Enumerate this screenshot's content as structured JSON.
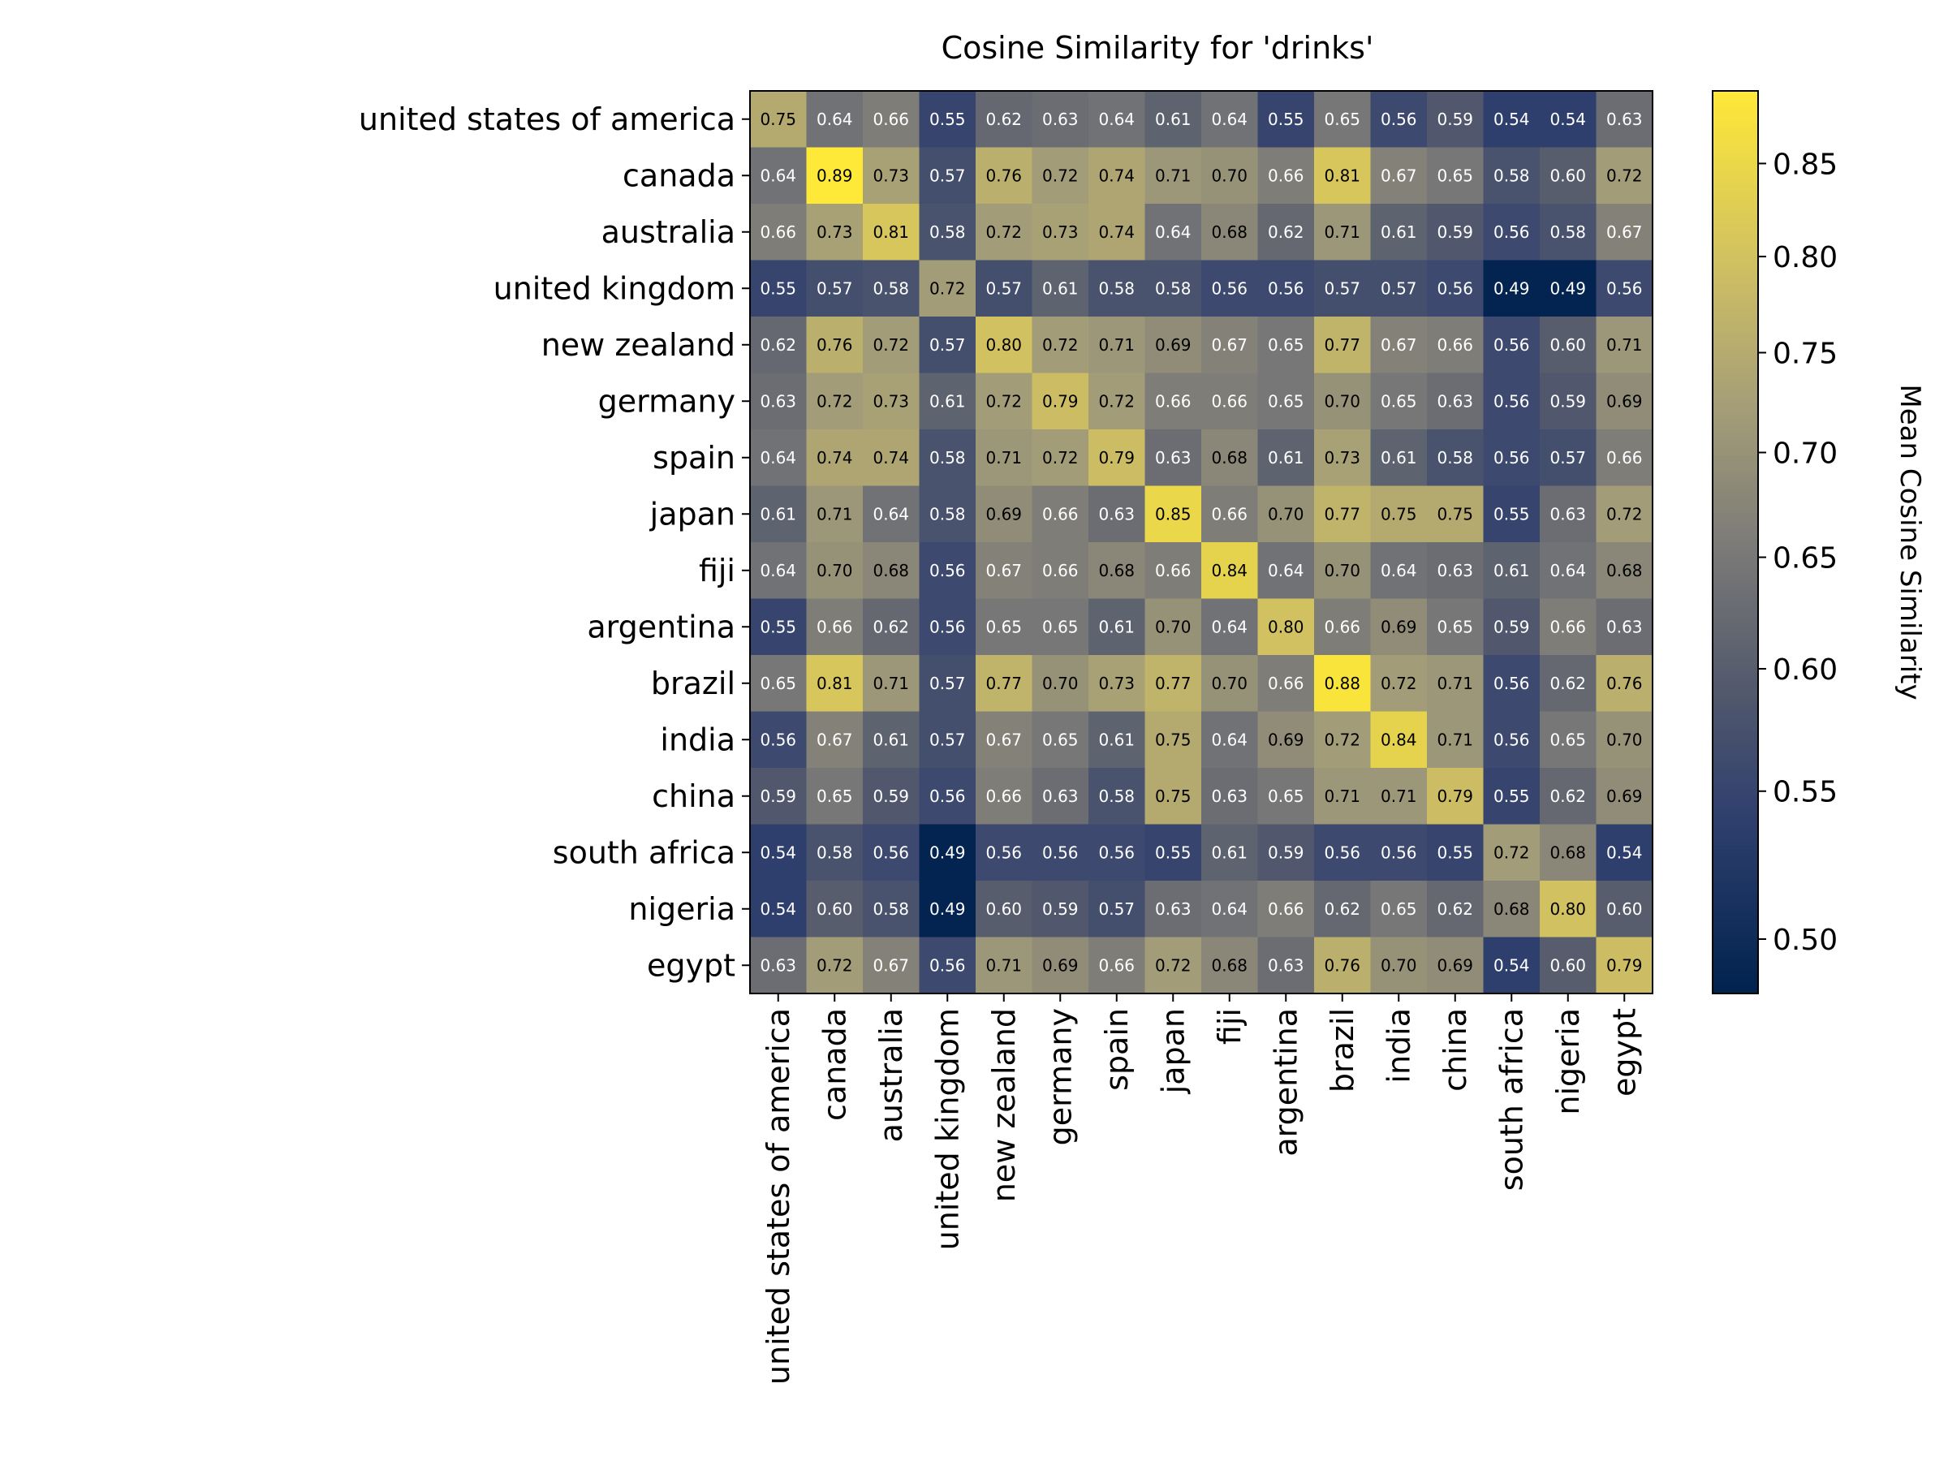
{
  "chart_data": {
    "type": "heatmap",
    "title": "Cosine Similarity for 'drinks'",
    "row_labels": [
      "united states of america",
      "canada",
      "australia",
      "united kingdom",
      "new zealand",
      "germany",
      "spain",
      "japan",
      "fiji",
      "argentina",
      "brazil",
      "india",
      "china",
      "south africa",
      "nigeria",
      "egypt"
    ],
    "col_labels": [
      "united states of america",
      "canada",
      "australia",
      "united kingdom",
      "new zealand",
      "germany",
      "spain",
      "japan",
      "fiji",
      "argentina",
      "brazil",
      "india",
      "china",
      "south africa",
      "nigeria",
      "egypt"
    ],
    "values": [
      [
        0.75,
        0.64,
        0.66,
        0.55,
        0.62,
        0.63,
        0.64,
        0.61,
        0.64,
        0.55,
        0.65,
        0.56,
        0.59,
        0.54,
        0.54,
        0.63
      ],
      [
        0.64,
        0.89,
        0.73,
        0.57,
        0.76,
        0.72,
        0.74,
        0.71,
        0.7,
        0.66,
        0.81,
        0.67,
        0.65,
        0.58,
        0.6,
        0.72
      ],
      [
        0.66,
        0.73,
        0.81,
        0.58,
        0.72,
        0.73,
        0.74,
        0.64,
        0.68,
        0.62,
        0.71,
        0.61,
        0.59,
        0.56,
        0.58,
        0.67
      ],
      [
        0.55,
        0.57,
        0.58,
        0.72,
        0.57,
        0.61,
        0.58,
        0.58,
        0.56,
        0.56,
        0.57,
        0.57,
        0.56,
        0.49,
        0.49,
        0.56
      ],
      [
        0.62,
        0.76,
        0.72,
        0.57,
        0.8,
        0.72,
        0.71,
        0.69,
        0.67,
        0.65,
        0.77,
        0.67,
        0.66,
        0.56,
        0.6,
        0.71
      ],
      [
        0.63,
        0.72,
        0.73,
        0.61,
        0.72,
        0.79,
        0.72,
        0.66,
        0.66,
        0.65,
        0.7,
        0.65,
        0.63,
        0.56,
        0.59,
        0.69
      ],
      [
        0.64,
        0.74,
        0.74,
        0.58,
        0.71,
        0.72,
        0.79,
        0.63,
        0.68,
        0.61,
        0.73,
        0.61,
        0.58,
        0.56,
        0.57,
        0.66
      ],
      [
        0.61,
        0.71,
        0.64,
        0.58,
        0.69,
        0.66,
        0.63,
        0.85,
        0.66,
        0.7,
        0.77,
        0.75,
        0.75,
        0.55,
        0.63,
        0.72
      ],
      [
        0.64,
        0.7,
        0.68,
        0.56,
        0.67,
        0.66,
        0.68,
        0.66,
        0.84,
        0.64,
        0.7,
        0.64,
        0.63,
        0.61,
        0.64,
        0.68
      ],
      [
        0.55,
        0.66,
        0.62,
        0.56,
        0.65,
        0.65,
        0.61,
        0.7,
        0.64,
        0.8,
        0.66,
        0.69,
        0.65,
        0.59,
        0.66,
        0.63
      ],
      [
        0.65,
        0.81,
        0.71,
        0.57,
        0.77,
        0.7,
        0.73,
        0.77,
        0.7,
        0.66,
        0.88,
        0.72,
        0.71,
        0.56,
        0.62,
        0.76
      ],
      [
        0.56,
        0.67,
        0.61,
        0.57,
        0.67,
        0.65,
        0.61,
        0.75,
        0.64,
        0.69,
        0.72,
        0.84,
        0.71,
        0.56,
        0.65,
        0.7
      ],
      [
        0.59,
        0.65,
        0.59,
        0.56,
        0.66,
        0.63,
        0.58,
        0.75,
        0.63,
        0.65,
        0.71,
        0.71,
        0.79,
        0.55,
        0.62,
        0.69
      ],
      [
        0.54,
        0.58,
        0.56,
        0.49,
        0.56,
        0.56,
        0.56,
        0.55,
        0.61,
        0.59,
        0.56,
        0.56,
        0.55,
        0.72,
        0.68,
        0.54
      ],
      [
        0.54,
        0.6,
        0.58,
        0.49,
        0.6,
        0.59,
        0.57,
        0.63,
        0.64,
        0.66,
        0.62,
        0.65,
        0.62,
        0.68,
        0.8,
        0.6
      ],
      [
        0.63,
        0.72,
        0.67,
        0.56,
        0.71,
        0.69,
        0.66,
        0.72,
        0.68,
        0.63,
        0.76,
        0.7,
        0.69,
        0.54,
        0.6,
        0.79
      ]
    ],
    "colorbar": {
      "label": "Mean Cosine Similarity",
      "range": [
        0.488,
        0.89
      ],
      "ticks": [
        0.5,
        0.55,
        0.6,
        0.65,
        0.7,
        0.75,
        0.8,
        0.85
      ],
      "tick_labels": [
        "0.50",
        "0.55",
        "0.60",
        "0.65",
        "0.70",
        "0.75",
        "0.80",
        "0.85"
      ],
      "colormap": "cividis",
      "scale": "power"
    },
    "cell_value_format": "2 decimals",
    "grid": false
  }
}
